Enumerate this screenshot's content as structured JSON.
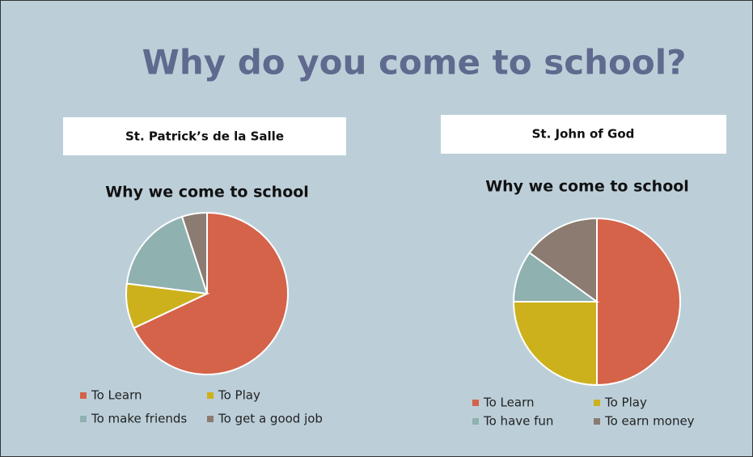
{
  "title": "Why do you come to school?",
  "chart_data": [
    {
      "type": "pie",
      "school": "St. Patrick’s de la Salle",
      "title": "Why we come to school",
      "categories": [
        "To Learn",
        "To Play",
        "To make friends",
        "To get a good job"
      ],
      "values": [
        68,
        9,
        18,
        5
      ],
      "colors": [
        "#d4634a",
        "#cdb11c",
        "#8fb1b0",
        "#8b7b70"
      ]
    },
    {
      "type": "pie",
      "school": "St. John of God",
      "title": "Why we come to school",
      "categories": [
        "To Learn",
        "To Play",
        "To have fun",
        "To earn money"
      ],
      "values": [
        50,
        25,
        10,
        15
      ],
      "colors": [
        "#d4634a",
        "#cdb11c",
        "#8fb1b0",
        "#8b7b70"
      ]
    }
  ]
}
